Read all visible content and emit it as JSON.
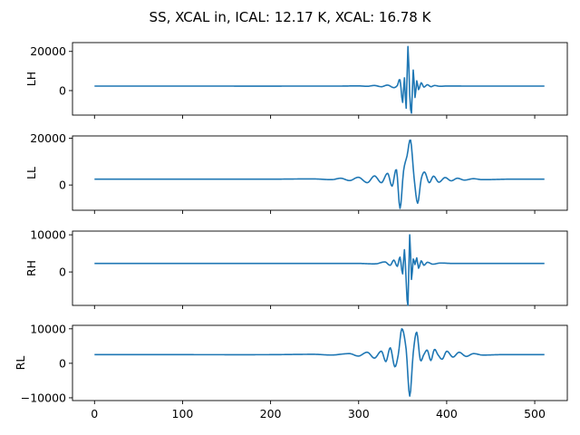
{
  "chart_data": {
    "type": "line",
    "title": "SS, XCAL in, ICAL: 12.17 K, XCAL: 16.78 K",
    "xlim": [
      -25,
      537
    ],
    "xticks": [
      0,
      100,
      200,
      300,
      400,
      500
    ],
    "x_tick_labels": [
      "0",
      "100",
      "200",
      "300",
      "400",
      "500"
    ],
    "grid": false,
    "legend": "none",
    "color": "#1f77b4",
    "panels": [
      {
        "ylabel": "LH",
        "ylim": [
          -12500,
          24500
        ],
        "yticks": [
          0,
          20000
        ],
        "y_tick_labels": [
          "0",
          "20000"
        ],
        "baseline": 2300,
        "series": {
          "x": [
            0,
            280,
            300,
            310,
            318,
            326,
            333,
            340,
            344,
            347,
            350,
            352,
            354,
            356,
            358,
            360,
            362,
            364,
            366,
            368,
            371,
            374,
            378,
            382,
            386,
            392,
            400,
            420,
            511
          ],
          "y": [
            2300,
            2300,
            2400,
            2200,
            2600,
            2000,
            2800,
            1500,
            2600,
            5500,
            -6000,
            6500,
            -9000,
            22500,
            -2000,
            -11500,
            10500,
            -3500,
            5000,
            500,
            4000,
            1800,
            3000,
            2000,
            2600,
            2200,
            2350,
            2300,
            2300
          ]
        }
      },
      {
        "ylabel": "LL",
        "ylim": [
          -10800,
          21000
        ],
        "yticks": [
          0,
          20000
        ],
        "y_tick_labels": [
          "0",
          "20000"
        ],
        "baseline": 2500,
        "series": {
          "x": [
            0,
            100,
            200,
            250,
            270,
            280,
            290,
            300,
            310,
            318,
            326,
            333,
            338,
            343,
            347,
            351,
            355,
            359,
            363,
            367,
            371,
            375,
            380,
            385,
            391,
            398,
            405,
            412,
            420,
            430,
            440,
            470,
            511
          ],
          "y": [
            2500,
            2500,
            2500,
            2600,
            2300,
            2900,
            1900,
            3300,
            1000,
            3900,
            1000,
            5000,
            -500,
            6500,
            -10000,
            6000,
            12500,
            19200,
            3000,
            -7800,
            2500,
            5500,
            1000,
            3800,
            1200,
            3200,
            1800,
            2900,
            2100,
            2700,
            2300,
            2500,
            2500
          ]
        }
      },
      {
        "ylabel": "RH",
        "ylim": [
          -9000,
          11000
        ],
        "yticks": [
          0,
          10000
        ],
        "y_tick_labels": [
          "0",
          "10000"
        ],
        "baseline": 2300,
        "series": {
          "x": [
            0,
            300,
            320,
            330,
            336,
            340,
            344,
            347,
            350,
            352,
            354,
            356,
            358,
            360,
            362,
            364,
            366,
            368,
            371,
            374,
            378,
            384,
            392,
            405,
            511
          ],
          "y": [
            2300,
            2300,
            2200,
            2700,
            1800,
            3200,
            1500,
            4000,
            -500,
            6000,
            -2500,
            -9000,
            10000,
            -2000,
            3500,
            2000,
            3800,
            1000,
            3000,
            1800,
            2600,
            2100,
            2400,
            2300,
            2300
          ]
        }
      },
      {
        "ylabel": "RL",
        "ylim": [
          -10800,
          11000
        ],
        "yticks": [
          -10000,
          0,
          10000
        ],
        "y_tick_labels": [
          "−10000",
          "0",
          "10000"
        ],
        "baseline": 2500,
        "series": {
          "x": [
            0,
            100,
            200,
            250,
            270,
            290,
            300,
            310,
            318,
            326,
            331,
            336,
            341,
            345,
            349,
            354,
            358,
            362,
            366,
            370,
            374,
            378,
            382,
            386,
            390,
            395,
            400,
            407,
            414,
            422,
            430,
            440,
            460,
            511
          ],
          "y": [
            2500,
            2500,
            2500,
            2600,
            2400,
            2800,
            2100,
            3200,
            1500,
            3500,
            500,
            4500,
            -1000,
            2500,
            10000,
            4000,
            -9500,
            3000,
            9000,
            1000,
            2500,
            3800,
            800,
            4000,
            2500,
            1200,
            3500,
            1800,
            3200,
            2000,
            2800,
            2400,
            2500,
            2500
          ]
        }
      }
    ]
  }
}
